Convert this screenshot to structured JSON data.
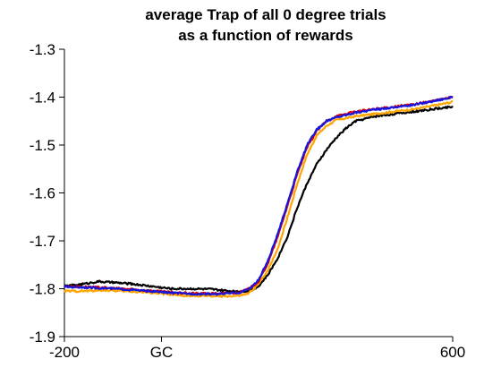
{
  "chart_data": {
    "type": "line",
    "title": [
      "average Trap of all 0 degree trials",
      "as a function of rewards"
    ],
    "xlabel": "",
    "ylabel": "",
    "xlim": [
      -200,
      600
    ],
    "ylim": [
      -1.9,
      -1.3
    ],
    "y_ticks": [
      -1.3,
      -1.4,
      -1.5,
      -1.6,
      -1.7,
      -1.8,
      -1.9
    ],
    "y_tick_labels": [
      "-1.3",
      "-1.4",
      "-1.5",
      "-1.6",
      "-1.7",
      "-1.8",
      "-1.9"
    ],
    "x_ticks": [
      -200,
      0,
      600
    ],
    "x_tick_labels": [
      "-200",
      "GC",
      "600"
    ],
    "grid": false,
    "legend": "none",
    "series": [
      {
        "name": "black",
        "color": "#000000",
        "x": [
          -200,
          -160,
          -130,
          -100,
          -60,
          -20,
          20,
          60,
          100,
          140,
          180,
          200,
          220,
          240,
          260,
          280,
          300,
          320,
          340,
          360,
          380,
          400,
          440,
          480,
          520,
          560,
          600
        ],
        "y": [
          -1.795,
          -1.79,
          -1.785,
          -1.787,
          -1.79,
          -1.795,
          -1.8,
          -1.8,
          -1.801,
          -1.805,
          -1.805,
          -1.795,
          -1.77,
          -1.735,
          -1.69,
          -1.63,
          -1.58,
          -1.54,
          -1.51,
          -1.485,
          -1.465,
          -1.45,
          -1.44,
          -1.435,
          -1.43,
          -1.425,
          -1.42
        ]
      },
      {
        "name": "orange",
        "color": "#FFA500",
        "x": [
          -200,
          -160,
          -120,
          -80,
          -40,
          0,
          40,
          80,
          120,
          160,
          180,
          200,
          220,
          240,
          260,
          280,
          300,
          320,
          340,
          360,
          400,
          440,
          480,
          520,
          560,
          600
        ],
        "y": [
          -1.805,
          -1.805,
          -1.803,
          -1.805,
          -1.807,
          -1.81,
          -1.815,
          -1.815,
          -1.816,
          -1.815,
          -1.81,
          -1.79,
          -1.76,
          -1.715,
          -1.65,
          -1.58,
          -1.52,
          -1.48,
          -1.46,
          -1.448,
          -1.44,
          -1.435,
          -1.43,
          -1.425,
          -1.418,
          -1.41
        ]
      },
      {
        "name": "red",
        "color": "#DD0000",
        "x": [
          -200,
          -160,
          -120,
          -80,
          -40,
          0,
          40,
          80,
          120,
          160,
          180,
          200,
          220,
          240,
          260,
          280,
          300,
          320,
          340,
          360,
          400,
          440,
          480,
          520,
          560,
          600
        ],
        "y": [
          -1.795,
          -1.796,
          -1.798,
          -1.8,
          -1.803,
          -1.806,
          -1.809,
          -1.81,
          -1.81,
          -1.808,
          -1.8,
          -1.785,
          -1.745,
          -1.69,
          -1.625,
          -1.56,
          -1.505,
          -1.47,
          -1.45,
          -1.44,
          -1.43,
          -1.425,
          -1.42,
          -1.415,
          -1.408,
          -1.4
        ]
      },
      {
        "name": "blue",
        "color": "#1515DD",
        "x": [
          -200,
          -160,
          -120,
          -80,
          -40,
          0,
          40,
          80,
          120,
          160,
          180,
          200,
          220,
          240,
          260,
          280,
          300,
          320,
          340,
          360,
          400,
          440,
          480,
          520,
          560,
          600
        ],
        "y": [
          -1.796,
          -1.797,
          -1.799,
          -1.801,
          -1.804,
          -1.807,
          -1.81,
          -1.811,
          -1.811,
          -1.808,
          -1.801,
          -1.782,
          -1.74,
          -1.685,
          -1.62,
          -1.555,
          -1.5,
          -1.468,
          -1.45,
          -1.442,
          -1.432,
          -1.426,
          -1.421,
          -1.416,
          -1.408,
          -1.4
        ]
      }
    ]
  }
}
